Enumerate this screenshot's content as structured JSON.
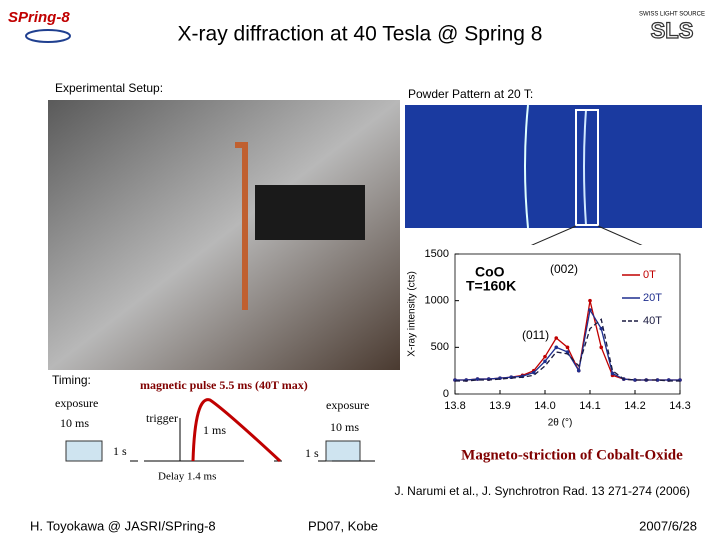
{
  "header": {
    "title": "X-ray diffraction at 40 Tesla @ Spring 8",
    "logo_left": "SPring-8",
    "logo_right_small": "SWISS LIGHT SOURCE",
    "logo_right": "SLS"
  },
  "setup_label": "Experimental Setup:",
  "powder_label": "Powder Pattern at 20 T:",
  "plot": {
    "type": "line",
    "y_label": "X-ray intensity (cts)",
    "x_label": "2θ (°)",
    "annotations": [
      "CoO",
      "T=160K",
      "(002)",
      "(011)"
    ],
    "xlim": [
      13.8,
      14.3
    ],
    "ylim": [
      0,
      1500
    ],
    "xticks": [
      13.8,
      13.9,
      {
        "value": 14.0,
        "label": "14.0"
      },
      14.1,
      14.2,
      14.3
    ],
    "yticks": [
      0,
      500,
      1000,
      1500
    ],
    "x": [
      13.8,
      13.825,
      13.85,
      13.875,
      13.9,
      13.925,
      13.95,
      13.975,
      14.0,
      14.025,
      14.05,
      14.075,
      14.1,
      14.125,
      14.15,
      14.175,
      14.2,
      14.225,
      14.25,
      14.275,
      14.3
    ],
    "series": [
      {
        "name": "0T",
        "color": "#c00000",
        "dash": false,
        "values": [
          150,
          150,
          160,
          160,
          170,
          180,
          200,
          250,
          400,
          600,
          500,
          250,
          1000,
          500,
          200,
          160,
          150,
          150,
          150,
          150,
          150
        ]
      },
      {
        "name": "20T",
        "color": "#1f2f8f",
        "dash": false,
        "values": [
          150,
          150,
          160,
          160,
          170,
          180,
          190,
          230,
          350,
          500,
          450,
          250,
          900,
          700,
          220,
          160,
          150,
          150,
          150,
          150,
          150
        ]
      },
      {
        "name": "40T",
        "color": "#1a1a40",
        "dash": true,
        "values": [
          140,
          140,
          150,
          150,
          160,
          170,
          180,
          200,
          300,
          450,
          430,
          300,
          700,
          800,
          250,
          160,
          150,
          150,
          150,
          140,
          140
        ]
      }
    ]
  },
  "timing": {
    "title": "Timing:",
    "pulse": "magnetic pulse 5.5 ms (40T max)",
    "exposure_left": "exposure",
    "duration_left": "10 ms",
    "trigger": "trigger",
    "rise": "1 ms",
    "exposure_right": "exposure",
    "duration_right": "10 ms",
    "gap_left": "1 s",
    "gap_right": "1 s",
    "delay": "Delay 1.4 ms"
  },
  "caption": "Magneto-striction of Cobalt-Oxide",
  "reference": "J. Narumi et al., J. Synchrotron Rad. 13 271-274 (2006)",
  "footer": {
    "left": "H. Toyokawa @ JASRI/SPring-8",
    "center": "PD07, Kobe",
    "right": "2007/6/28"
  }
}
